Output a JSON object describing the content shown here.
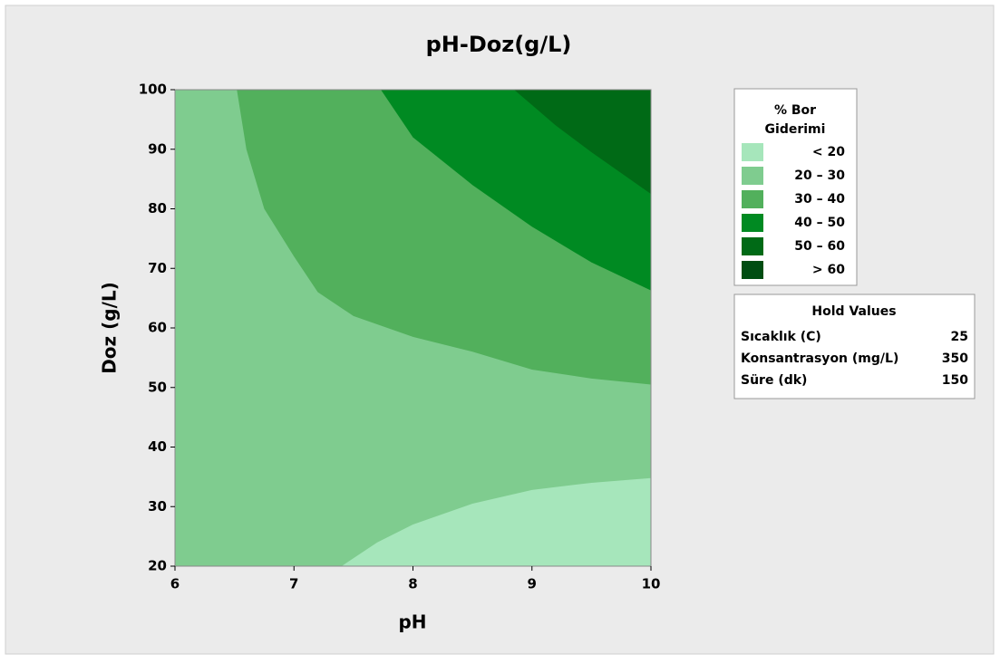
{
  "chart_data": {
    "type": "contour",
    "title": "pH-Doz(g/L)",
    "xlabel": "pH",
    "ylabel": "Doz (g/L)",
    "xlim": [
      6,
      10
    ],
    "ylim": [
      20,
      100
    ],
    "xticks": [
      6,
      7,
      8,
      9,
      10
    ],
    "yticks": [
      20,
      30,
      40,
      50,
      60,
      70,
      80,
      90,
      100
    ],
    "legend_title": [
      "% Bor",
      "Giderimi"
    ],
    "bands": [
      {
        "label": "< 20",
        "color": "#a6e6bb"
      },
      {
        "label": "20 – 30",
        "color": "#7fcc8f"
      },
      {
        "label": "30 – 40",
        "color": "#52b05c"
      },
      {
        "label": "40 – 50",
        "color": "#008a22"
      },
      {
        "label": "50 – 60",
        "color": "#006a16"
      },
      {
        "label": "> 60",
        "color": "#004d12"
      }
    ],
    "contours": [
      {
        "level": 20,
        "x": [
          7.4,
          7.7,
          8,
          8.5,
          9,
          9.5,
          10
        ],
        "y": [
          20,
          24,
          27,
          30.5,
          32.8,
          34,
          34.8
        ]
      },
      {
        "level": 30,
        "x": [
          6.52,
          6.6,
          6.75,
          7,
          7.2,
          7.5,
          8,
          8.5,
          9,
          9.5,
          10
        ],
        "y": [
          100,
          90,
          80,
          72,
          66,
          62,
          58.5,
          56,
          53,
          51.5,
          50.5
        ]
      },
      {
        "level": 40,
        "x": [
          7.73,
          8,
          8.5,
          9,
          9.5,
          10
        ],
        "y": [
          100,
          92,
          84,
          77,
          71,
          66.3
        ]
      },
      {
        "level": 50,
        "x": [
          8.85,
          9.2,
          9.5,
          10
        ],
        "y": [
          100,
          94,
          89.5,
          82.5
        ]
      }
    ],
    "hold_values": {
      "title": "Hold Values",
      "rows": [
        [
          "Sıcaklık (C)",
          25
        ],
        [
          "Konsantrasyon (mg/L)",
          350
        ],
        [
          "Süre (dk)",
          150
        ]
      ]
    }
  }
}
